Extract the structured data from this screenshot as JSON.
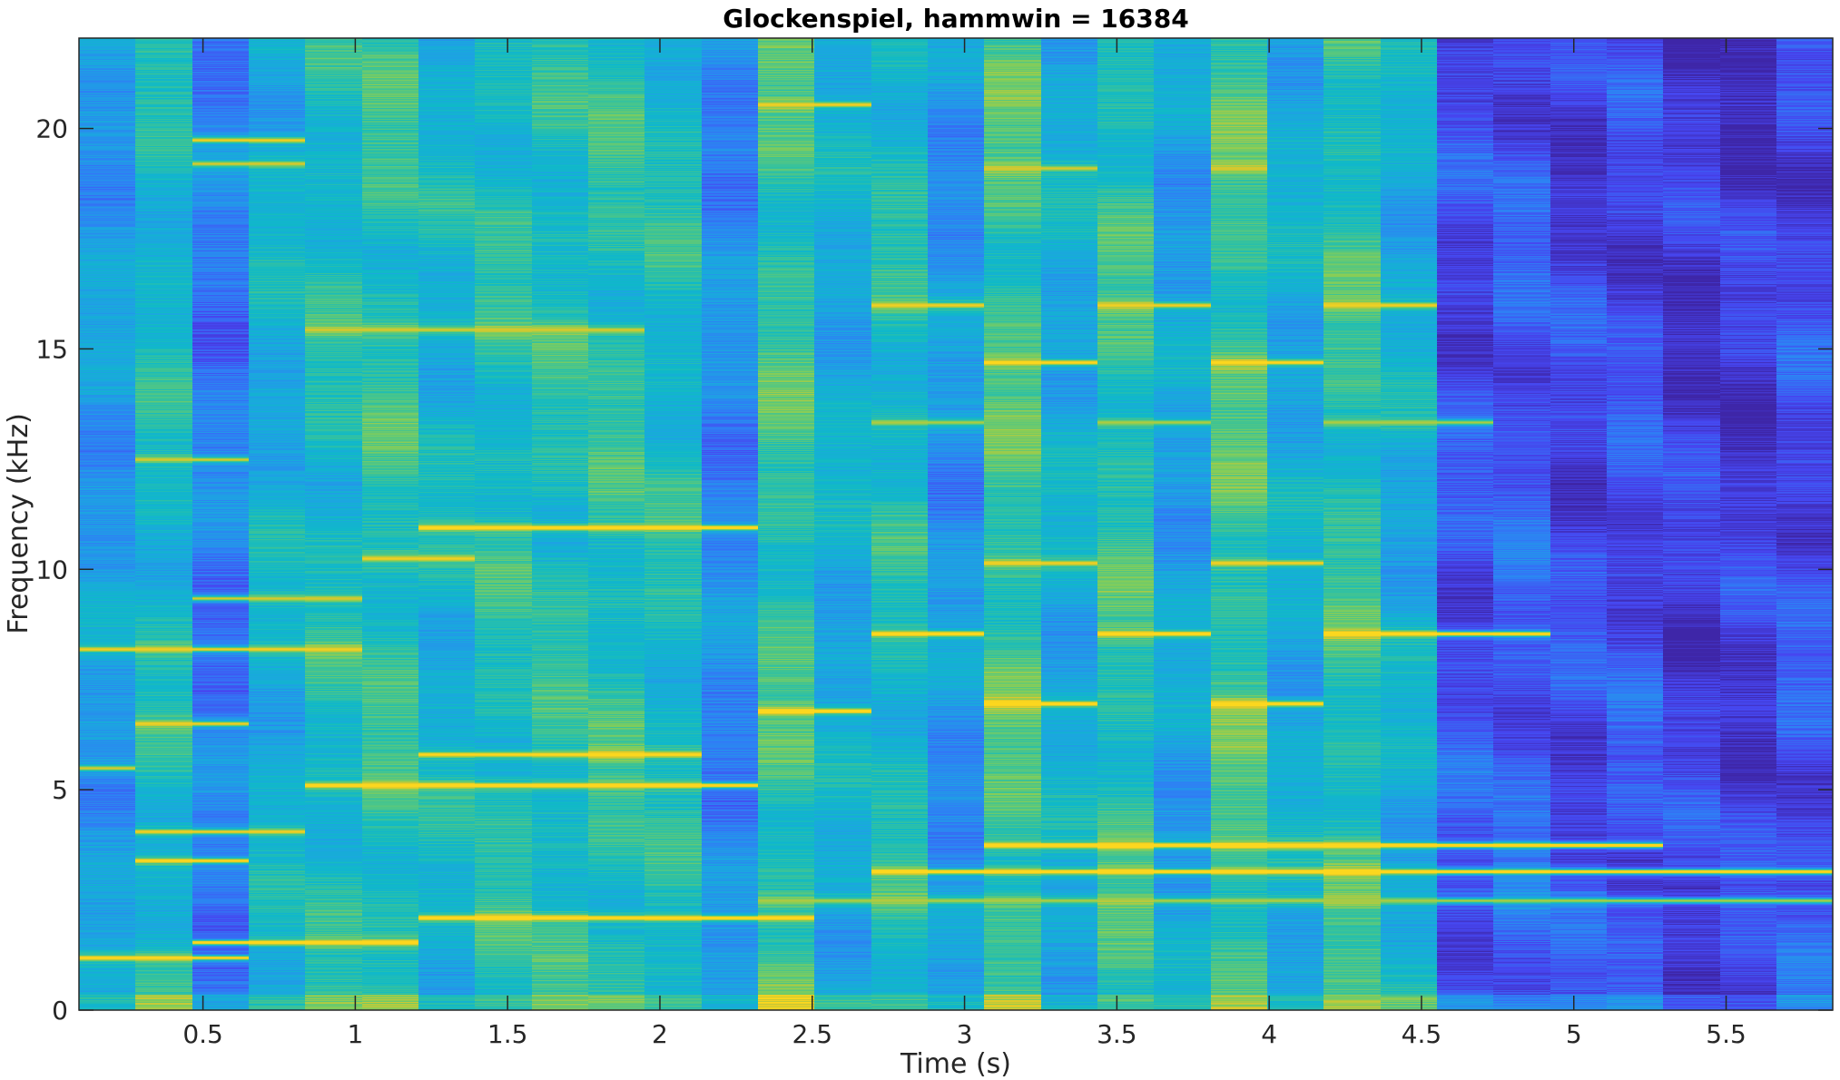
{
  "chart_data": {
    "type": "heatmap",
    "title": "Glockenspiel, hammwin = 16384",
    "xlabel": "Time (s)",
    "ylabel": "Frequency (kHz)",
    "xlim": [
      0.093,
      5.85
    ],
    "ylim": [
      0,
      22.05
    ],
    "x_ticks": [
      "0.5",
      "1",
      "1.5",
      "2",
      "2.5",
      "3",
      "3.5",
      "4",
      "4.5",
      "5",
      "5.5"
    ],
    "y_ticks": [
      "0",
      "5",
      "10",
      "15",
      "20"
    ],
    "colormap": "parula",
    "colors": {
      "low": "#3e26a8",
      "mid_low": "#2f7ef5",
      "mid": "#0fb1d6",
      "mid_high": "#7ecb62",
      "high": "#f6d42a"
    },
    "time_frame_centers_s": [
      0.186,
      0.372,
      0.557,
      0.743,
      0.929,
      1.115,
      1.3,
      1.486,
      1.672,
      1.858,
      2.043,
      2.229,
      2.415,
      2.601,
      2.786,
      2.972,
      3.158,
      3.344,
      3.529,
      3.715,
      3.901,
      4.087,
      4.272,
      4.458,
      4.644,
      4.83,
      5.016,
      5.201,
      5.387,
      5.573,
      5.759
    ],
    "frame_base_level": [
      0.42,
      0.58,
      0.3,
      0.52,
      0.6,
      0.65,
      0.55,
      0.62,
      0.62,
      0.64,
      0.6,
      0.35,
      0.68,
      0.5,
      0.6,
      0.4,
      0.7,
      0.5,
      0.66,
      0.45,
      0.7,
      0.5,
      0.66,
      0.5,
      0.2,
      0.24,
      0.18,
      0.2,
      0.14,
      0.14,
      0.2
    ],
    "tonal_lines_khz": [
      {
        "freq": 1.2,
        "frames": [
          0,
          1,
          2
        ],
        "level": 0.9
      },
      {
        "freq": 1.55,
        "frames": [
          2,
          3,
          4,
          5
        ],
        "level": 0.95
      },
      {
        "freq": 2.1,
        "frames": [
          6,
          7,
          8,
          9,
          10,
          11,
          12
        ],
        "level": 0.95
      },
      {
        "freq": 2.5,
        "frames": [
          12,
          13,
          14,
          15,
          16,
          17,
          18,
          19,
          20,
          21,
          22,
          23,
          24,
          25,
          26,
          27,
          28,
          29,
          30
        ],
        "level": 0.75
      },
      {
        "freq": 3.15,
        "frames": [
          14,
          15,
          16,
          17,
          18,
          19,
          20,
          21,
          22,
          23,
          24,
          25,
          26,
          27,
          28,
          29,
          30
        ],
        "level": 0.95
      },
      {
        "freq": 3.4,
        "frames": [
          1,
          2
        ],
        "level": 0.9
      },
      {
        "freq": 3.75,
        "frames": [
          16,
          17,
          18,
          19,
          20,
          21,
          22,
          23,
          24,
          25,
          26,
          27
        ],
        "level": 1.0
      },
      {
        "freq": 4.05,
        "frames": [
          1,
          2,
          3
        ],
        "level": 0.85
      },
      {
        "freq": 5.1,
        "frames": [
          4,
          5,
          6,
          7,
          8,
          9,
          10,
          11
        ],
        "level": 0.95
      },
      {
        "freq": 5.5,
        "frames": [
          0
        ],
        "level": 0.8
      },
      {
        "freq": 5.8,
        "frames": [
          6,
          7,
          8,
          9,
          10
        ],
        "level": 0.9
      },
      {
        "freq": 6.5,
        "frames": [
          1,
          2
        ],
        "level": 0.85
      },
      {
        "freq": 6.8,
        "frames": [
          12,
          13
        ],
        "level": 0.97
      },
      {
        "freq": 6.95,
        "frames": [
          16,
          17,
          20,
          21
        ],
        "level": 0.95
      },
      {
        "freq": 8.2,
        "frames": [
          0,
          1,
          2,
          3,
          4
        ],
        "level": 0.85
      },
      {
        "freq": 8.55,
        "frames": [
          14,
          15,
          18,
          19,
          22,
          23,
          24,
          25
        ],
        "level": 0.95
      },
      {
        "freq": 9.35,
        "frames": [
          2,
          3,
          4
        ],
        "level": 0.8
      },
      {
        "freq": 10.15,
        "frames": [
          16,
          17,
          20,
          21
        ],
        "level": 0.85
      },
      {
        "freq": 10.25,
        "frames": [
          5,
          6
        ],
        "level": 0.85
      },
      {
        "freq": 10.95,
        "frames": [
          6,
          7,
          8,
          9,
          10,
          11
        ],
        "level": 0.95
      },
      {
        "freq": 12.5,
        "frames": [
          1,
          2
        ],
        "level": 0.8
      },
      {
        "freq": 13.35,
        "frames": [
          14,
          15,
          18,
          19,
          22,
          23,
          24
        ],
        "level": 0.75
      },
      {
        "freq": 14.7,
        "frames": [
          16,
          17,
          20,
          21
        ],
        "level": 0.9
      },
      {
        "freq": 15.45,
        "frames": [
          4,
          5,
          6,
          7,
          8,
          9
        ],
        "level": 0.8
      },
      {
        "freq": 16.0,
        "frames": [
          14,
          15,
          18,
          19,
          22,
          23
        ],
        "level": 0.85
      },
      {
        "freq": 19.1,
        "frames": [
          16,
          17,
          20
        ],
        "level": 0.8
      },
      {
        "freq": 19.2,
        "frames": [
          2,
          3
        ],
        "level": 0.8
      },
      {
        "freq": 19.75,
        "frames": [
          2,
          3
        ],
        "level": 0.85
      },
      {
        "freq": 20.55,
        "frames": [
          12,
          13
        ],
        "level": 0.85
      }
    ]
  }
}
